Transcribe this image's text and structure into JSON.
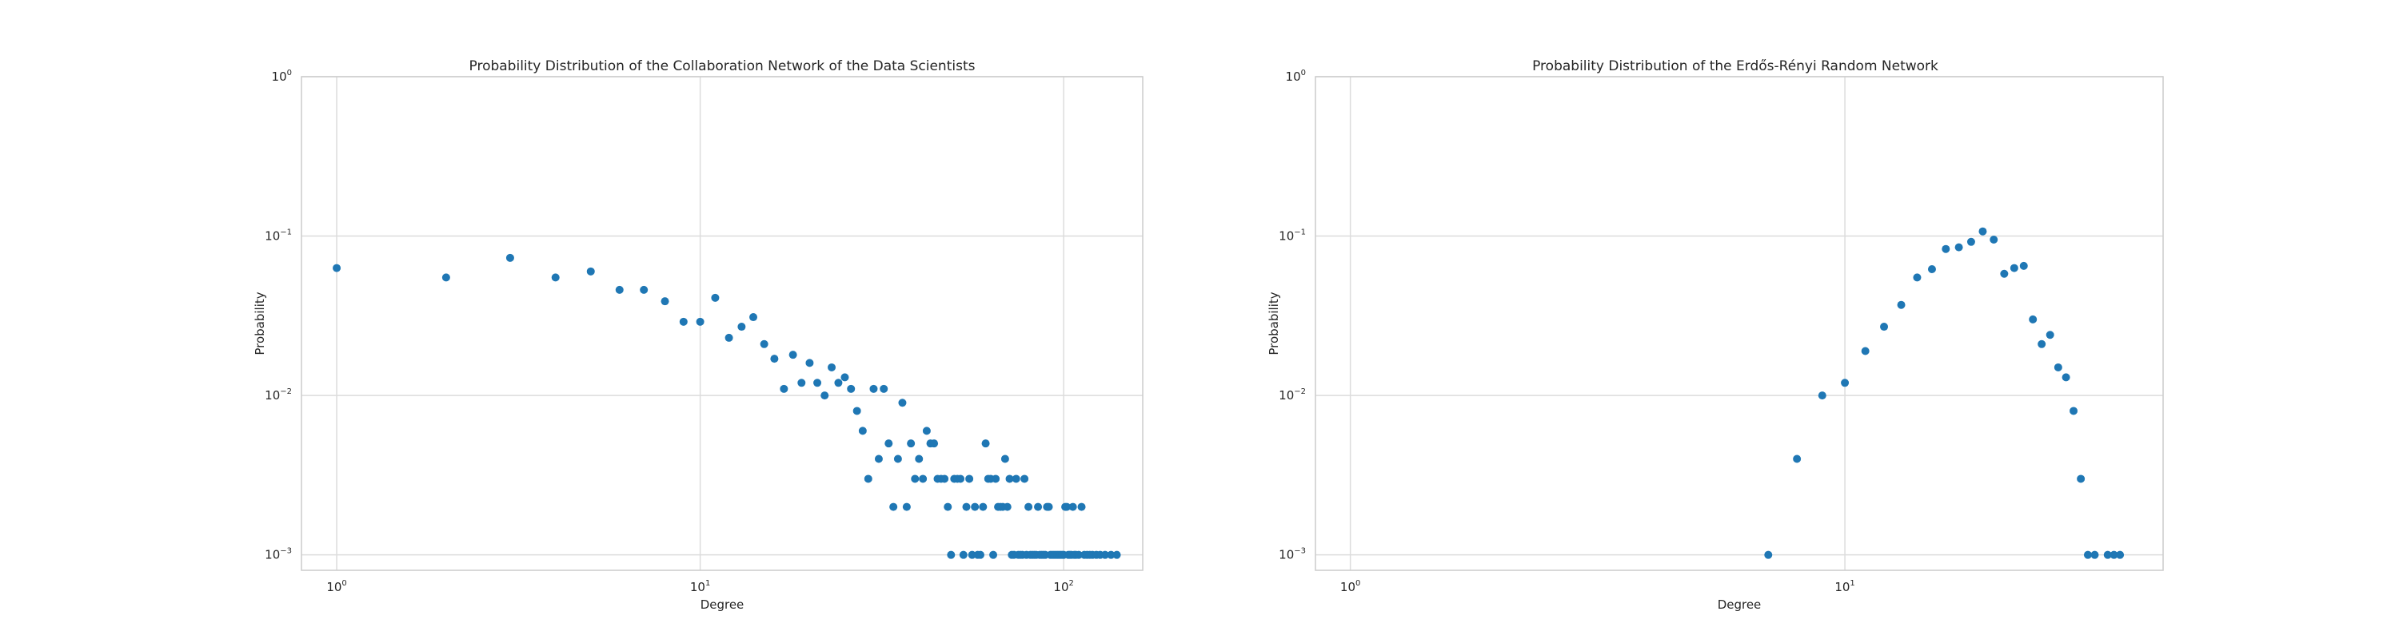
{
  "chart_data": [
    {
      "type": "scatter",
      "title": "Probability Distribution of the Collaboration Network of the Data Scientists",
      "xlabel": "Degree",
      "ylabel": "Probability",
      "xscale": "log",
      "yscale": "log",
      "xlim": [
        0.8,
        165
      ],
      "ylim": [
        0.0008,
        1
      ],
      "grid": true,
      "color": "#1f77b4",
      "xticks": [
        1,
        10,
        100
      ],
      "yticks": [
        0.001,
        0.01,
        0.1,
        1
      ],
      "x": [
        1,
        2,
        3,
        4,
        5,
        6,
        7,
        8,
        9,
        10,
        11,
        12,
        13,
        14,
        15,
        16,
        17,
        18,
        19,
        20,
        21,
        22,
        23,
        24,
        25,
        26,
        27,
        28,
        29,
        30,
        31,
        32,
        33,
        34,
        35,
        36,
        37,
        38,
        39,
        40,
        41,
        42,
        43,
        44,
        45,
        46,
        47,
        48,
        49,
        50,
        51,
        52,
        53,
        54,
        55,
        56,
        57,
        58,
        59,
        60,
        61,
        62,
        63,
        64,
        65,
        66,
        67,
        68,
        69,
        70,
        71,
        72,
        73,
        74,
        75,
        76,
        77,
        78,
        79,
        80,
        81,
        82,
        83,
        84,
        85,
        86,
        87,
        88,
        89,
        90,
        91,
        92,
        93,
        94,
        95,
        96,
        97,
        98,
        99,
        100,
        101,
        102,
        103,
        104,
        105,
        106,
        107,
        108,
        110,
        112,
        114,
        116,
        118,
        120,
        123,
        126,
        130,
        135,
        140
      ],
      "y": [
        0.063,
        0.055,
        0.073,
        0.055,
        0.06,
        0.046,
        0.046,
        0.039,
        0.029,
        0.029,
        0.041,
        0.023,
        0.027,
        0.031,
        0.021,
        0.017,
        0.011,
        0.018,
        0.012,
        0.016,
        0.012,
        0.01,
        0.015,
        0.012,
        0.013,
        0.011,
        0.008,
        0.006,
        0.003,
        0.011,
        0.004,
        0.011,
        0.005,
        0.002,
        0.004,
        0.009,
        0.002,
        0.005,
        0.003,
        0.004,
        0.003,
        0.006,
        0.005,
        0.005,
        0.003,
        0.003,
        0.003,
        0.002,
        0.001,
        0.003,
        0.003,
        0.003,
        0.001,
        0.002,
        0.003,
        0.001,
        0.002,
        0.001,
        0.001,
        0.002,
        0.005,
        0.003,
        0.003,
        0.001,
        0.003,
        0.002,
        0.002,
        0.002,
        0.004,
        0.002,
        0.003,
        0.001,
        0.001,
        0.003,
        0.001,
        0.001,
        0.001,
        0.003,
        0.001,
        0.002,
        0.001,
        0.001,
        0.001,
        0.001,
        0.002,
        0.001,
        0.001,
        0.001,
        0.001,
        0.002,
        0.002,
        0.001,
        0.001,
        0.001,
        0.001,
        0.001,
        0.001,
        0.001,
        0.001,
        0.001,
        0.002,
        0.002,
        0.001,
        0.001,
        0.001,
        0.002,
        0.001,
        0.001,
        0.001,
        0.002,
        0.001,
        0.001,
        0.001,
        0.001,
        0.001,
        0.001,
        0.001,
        0.001,
        0.001
      ]
    },
    {
      "type": "scatter",
      "title": "Probability Distribution of the Erdős-Rényi Random Network",
      "xlabel": "Degree",
      "ylabel": "Probability",
      "xscale": "log",
      "yscale": "log",
      "xlim": [
        0.85,
        44
      ],
      "ylim": [
        0.0008,
        1
      ],
      "grid": true,
      "color": "#1f77b4",
      "xticks": [
        1,
        10
      ],
      "yticks": [
        0.001,
        0.01,
        0.1,
        1
      ],
      "x": [
        7,
        8,
        9,
        10,
        11,
        12,
        13,
        14,
        15,
        16,
        17,
        18,
        19,
        20,
        21,
        22,
        23,
        24,
        25,
        26,
        27,
        28,
        29,
        30,
        31,
        32,
        34,
        35,
        36
      ],
      "y": [
        0.001,
        0.004,
        0.01,
        0.012,
        0.019,
        0.027,
        0.037,
        0.055,
        0.062,
        0.083,
        0.085,
        0.092,
        0.107,
        0.095,
        0.058,
        0.063,
        0.065,
        0.03,
        0.021,
        0.024,
        0.015,
        0.013,
        0.008,
        0.003,
        0.001,
        0.001,
        0.001,
        0.001,
        0.001
      ]
    }
  ]
}
